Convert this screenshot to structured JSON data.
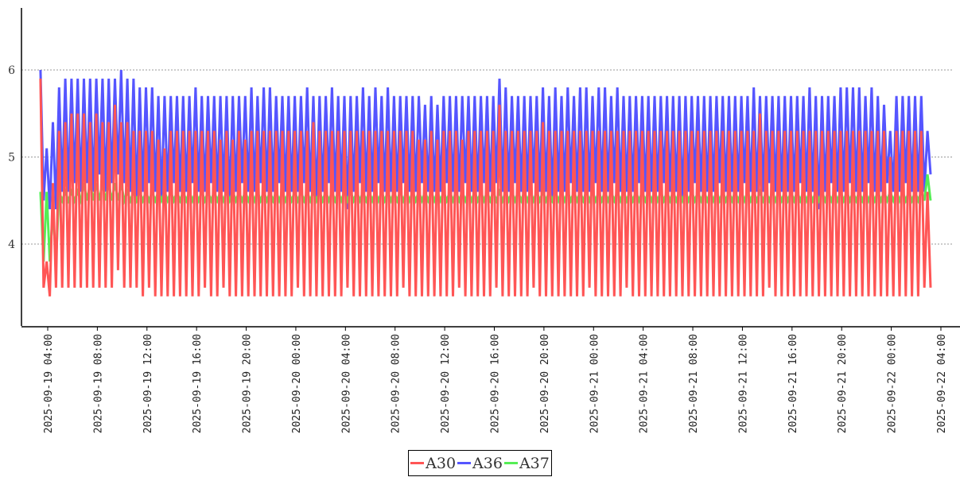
{
  "chart_data": {
    "type": "line",
    "title": "",
    "xlabel": "",
    "ylabel": "",
    "ylim": [
      3.07,
      6.71
    ],
    "xlim": [
      "2025-09-19 01:53",
      "2025-09-22 05:32"
    ],
    "grid": "horizontal-dotted",
    "legend_placement": "bottom-center",
    "y_ticks": [
      "4",
      "5",
      "6"
    ],
    "y_tick_values": [
      4,
      5,
      6
    ],
    "x_ticks": [
      "2025-09-19 04:00",
      "2025-09-19 08:00",
      "2025-09-19 12:00",
      "2025-09-19 16:00",
      "2025-09-19 20:00",
      "2025-09-20 00:00",
      "2025-09-20 04:00",
      "2025-09-20 08:00",
      "2025-09-20 12:00",
      "2025-09-20 16:00",
      "2025-09-20 20:00",
      "2025-09-21 00:00",
      "2025-09-21 04:00",
      "2025-09-21 08:00",
      "2025-09-21 12:00",
      "2025-09-21 16:00",
      "2025-09-21 20:00",
      "2025-09-22 00:00",
      "2025-09-22 04:00"
    ],
    "x_start": "2025-09-19 03:25",
    "cycle_minutes": 30,
    "series_format": "alternating peak (at start of each cycle) and trough (mid-cycle)",
    "series": [
      {
        "name": "A30",
        "color": "#ff5555",
        "peaks": [
          5.9,
          3.8,
          4.7,
          5.3,
          5.4,
          5.5,
          5.5,
          5.5,
          5.4,
          5.5,
          5.4,
          5.4,
          5.6,
          5.4,
          5.4,
          5.3,
          5.3,
          5.3,
          5.3,
          5.2,
          5.1,
          5.3,
          5.3,
          5.3,
          5.3,
          5.3,
          5.3,
          5.3,
          5.3,
          5.2,
          5.3,
          5.2,
          5.3,
          5.2,
          5.3,
          5.3,
          5.3,
          5.3,
          5.3,
          5.3,
          5.3,
          5.3,
          5.3,
          5.3,
          5.4,
          5.3,
          5.3,
          5.3,
          5.3,
          5.3,
          5.3,
          5.3,
          5.3,
          5.3,
          5.3,
          5.3,
          5.3,
          5.3,
          5.3,
          5.3,
          5.3,
          5.2,
          5.2,
          5.3,
          5.2,
          5.3,
          5.3,
          5.3,
          5.2,
          5.3,
          5.3,
          5.3,
          5.3,
          5.3,
          5.6,
          5.3,
          5.3,
          5.3,
          5.3,
          5.3,
          5.3,
          5.4,
          5.3,
          5.3,
          5.3,
          5.3,
          5.3,
          5.3,
          5.3,
          5.3,
          5.3,
          5.3,
          5.3,
          5.3,
          5.3,
          5.3,
          5.3,
          5.3,
          5.3,
          5.3,
          5.3,
          5.3,
          5.3,
          5.3,
          5.3,
          5.3,
          5.3,
          5.3,
          5.3,
          5.3,
          5.3,
          5.3,
          5.3,
          5.3,
          5.3,
          5.3,
          5.5,
          5.3,
          5.3,
          5.3,
          5.3,
          5.3,
          5.3,
          5.3,
          5.3,
          5.3,
          5.3,
          5.3,
          5.3,
          5.3,
          5.3,
          5.3,
          5.3,
          5.3,
          5.3,
          5.3,
          5.3,
          5.0,
          5.3,
          5.3,
          5.3,
          5.3,
          5.3,
          4.6
        ],
        "troughs": [
          3.5,
          3.4,
          3.5,
          3.5,
          3.5,
          3.5,
          3.5,
          3.5,
          3.5,
          3.5,
          3.5,
          3.5,
          3.7,
          3.5,
          3.5,
          3.5,
          3.4,
          3.5,
          3.4,
          3.4,
          3.4,
          3.4,
          3.4,
          3.4,
          3.4,
          3.4,
          3.5,
          3.4,
          3.4,
          3.5,
          3.4,
          3.4,
          3.4,
          3.4,
          3.4,
          3.4,
          3.4,
          3.4,
          3.4,
          3.4,
          3.4,
          3.5,
          3.4,
          3.4,
          3.4,
          3.4,
          3.4,
          3.4,
          3.4,
          3.5,
          3.4,
          3.4,
          3.4,
          3.4,
          3.4,
          3.4,
          3.4,
          3.4,
          3.5,
          3.4,
          3.4,
          3.4,
          3.4,
          3.4,
          3.4,
          3.4,
          3.4,
          3.5,
          3.4,
          3.4,
          3.4,
          3.4,
          3.4,
          3.5,
          3.4,
          3.4,
          3.4,
          3.4,
          3.4,
          3.5,
          3.4,
          3.4,
          3.4,
          3.4,
          3.4,
          3.4,
          3.4,
          3.4,
          3.5,
          3.4,
          3.4,
          3.4,
          3.4,
          3.4,
          3.5,
          3.4,
          3.4,
          3.4,
          3.4,
          3.4,
          3.4,
          3.4,
          3.4,
          3.4,
          3.4,
          3.4,
          3.4,
          3.4,
          3.4,
          3.4,
          3.4,
          3.4,
          3.4,
          3.4,
          3.4,
          3.4,
          3.4,
          3.5,
          3.4,
          3.4,
          3.4,
          3.4,
          3.4,
          3.4,
          3.4,
          3.4,
          3.4,
          3.4,
          3.4,
          3.4,
          3.4,
          3.4,
          3.4,
          3.4,
          3.4,
          3.4,
          3.4,
          3.4,
          3.4,
          3.4,
          3.4,
          3.4,
          3.5,
          3.5
        ]
      },
      {
        "name": "A36",
        "color": "#5555ff",
        "peaks": [
          6.0,
          5.1,
          5.4,
          5.8,
          5.9,
          5.9,
          5.9,
          5.9,
          5.9,
          5.9,
          5.9,
          5.9,
          5.9,
          6.0,
          5.9,
          5.9,
          5.8,
          5.8,
          5.8,
          5.7,
          5.7,
          5.7,
          5.7,
          5.7,
          5.7,
          5.8,
          5.7,
          5.7,
          5.7,
          5.7,
          5.7,
          5.7,
          5.7,
          5.7,
          5.8,
          5.7,
          5.8,
          5.8,
          5.7,
          5.7,
          5.7,
          5.7,
          5.7,
          5.8,
          5.7,
          5.7,
          5.7,
          5.8,
          5.7,
          5.7,
          5.7,
          5.7,
          5.8,
          5.7,
          5.8,
          5.7,
          5.8,
          5.7,
          5.7,
          5.7,
          5.7,
          5.7,
          5.6,
          5.7,
          5.6,
          5.7,
          5.7,
          5.7,
          5.7,
          5.7,
          5.7,
          5.7,
          5.7,
          5.7,
          5.9,
          5.8,
          5.7,
          5.7,
          5.7,
          5.7,
          5.7,
          5.8,
          5.7,
          5.8,
          5.7,
          5.8,
          5.7,
          5.8,
          5.8,
          5.7,
          5.8,
          5.8,
          5.7,
          5.8,
          5.7,
          5.7,
          5.7,
          5.7,
          5.7,
          5.7,
          5.7,
          5.7,
          5.7,
          5.7,
          5.7,
          5.7,
          5.7,
          5.7,
          5.7,
          5.7,
          5.7,
          5.7,
          5.7,
          5.7,
          5.7,
          5.8,
          5.7,
          5.7,
          5.7,
          5.7,
          5.7,
          5.7,
          5.7,
          5.7,
          5.8,
          5.7,
          5.7,
          5.7,
          5.7,
          5.8,
          5.8,
          5.8,
          5.8,
          5.7,
          5.8,
          5.7,
          5.6,
          5.3,
          5.7,
          5.7,
          5.7,
          5.7,
          5.7,
          5.3
        ],
        "troughs": [
          4.5,
          4.4,
          4.4,
          4.6,
          4.6,
          4.7,
          4.6,
          4.7,
          4.6,
          4.8,
          4.6,
          4.7,
          4.8,
          4.7,
          4.6,
          4.5,
          4.6,
          4.7,
          4.6,
          4.5,
          4.6,
          4.7,
          4.6,
          4.6,
          4.7,
          4.6,
          4.6,
          4.7,
          4.6,
          4.6,
          4.5,
          4.6,
          4.7,
          4.6,
          4.6,
          4.7,
          4.6,
          4.6,
          4.7,
          4.6,
          4.6,
          4.6,
          4.7,
          4.6,
          4.5,
          4.6,
          4.7,
          4.6,
          4.6,
          4.4,
          4.6,
          4.7,
          4.6,
          4.6,
          4.7,
          4.6,
          4.6,
          4.6,
          4.7,
          4.6,
          4.6,
          4.7,
          4.6,
          4.6,
          4.6,
          4.7,
          4.6,
          4.6,
          4.7,
          4.6,
          4.6,
          4.7,
          4.6,
          4.7,
          4.6,
          4.6,
          4.7,
          4.6,
          4.6,
          4.7,
          4.6,
          4.6,
          4.5,
          4.6,
          4.6,
          4.7,
          4.6,
          4.6,
          4.6,
          4.7,
          4.6,
          4.6,
          4.7,
          4.6,
          4.6,
          4.6,
          4.7,
          4.6,
          4.6,
          4.6,
          4.7,
          4.6,
          4.6,
          4.5,
          4.6,
          4.7,
          4.6,
          4.6,
          4.6,
          4.7,
          4.6,
          4.6,
          4.6,
          4.7,
          4.6,
          4.6,
          4.6,
          4.7,
          4.6,
          4.6,
          4.6,
          4.6,
          4.7,
          4.6,
          4.6,
          4.4,
          4.6,
          4.7,
          4.6,
          4.6,
          4.7,
          4.6,
          4.6,
          4.7,
          4.6,
          4.6,
          4.7,
          4.6,
          4.6,
          4.7,
          4.6,
          4.6,
          4.6,
          4.8
        ]
      },
      {
        "name": "A37",
        "color": "#55ee55",
        "peaks": [
          4.6,
          4.6,
          4.4,
          4.6,
          4.6,
          4.6,
          4.6,
          4.7,
          4.7,
          4.7,
          4.7,
          4.7,
          4.7,
          4.7,
          4.6,
          4.6,
          4.6,
          4.6,
          4.6,
          4.6,
          4.6,
          4.6,
          4.6,
          4.6,
          4.6,
          4.6,
          4.6,
          4.6,
          4.6,
          4.6,
          4.6,
          4.6,
          4.6,
          4.6,
          4.6,
          4.6,
          4.6,
          4.6,
          4.6,
          4.6,
          4.6,
          4.6,
          4.6,
          4.6,
          4.6,
          4.6,
          4.6,
          4.6,
          4.6,
          4.6,
          4.6,
          4.6,
          4.6,
          4.6,
          4.6,
          4.6,
          4.6,
          4.6,
          4.6,
          4.6,
          4.6,
          4.6,
          4.6,
          4.6,
          4.6,
          4.6,
          4.6,
          4.6,
          4.6,
          4.6,
          4.6,
          4.6,
          4.6,
          4.6,
          4.6,
          4.6,
          4.6,
          4.6,
          4.6,
          4.6,
          4.6,
          4.6,
          4.6,
          4.6,
          4.6,
          4.6,
          4.6,
          4.6,
          4.6,
          4.6,
          4.6,
          4.6,
          4.6,
          4.6,
          4.6,
          4.6,
          4.6,
          4.6,
          4.6,
          4.6,
          4.6,
          4.6,
          4.6,
          4.6,
          4.6,
          4.6,
          4.6,
          4.6,
          4.6,
          4.6,
          4.6,
          4.6,
          4.6,
          4.6,
          4.6,
          4.6,
          4.6,
          4.6,
          4.6,
          4.6,
          4.6,
          4.6,
          4.6,
          4.6,
          4.6,
          4.6,
          4.6,
          4.6,
          4.6,
          4.6,
          4.6,
          4.6,
          4.6,
          4.6,
          4.6,
          4.6,
          4.6,
          4.6,
          4.6,
          4.6,
          4.6,
          4.6,
          4.6,
          4.8
        ],
        "troughs": [
          3.8,
          3.8,
          3.8,
          4.5,
          4.5,
          4.5,
          4.5,
          4.5,
          4.5,
          4.5,
          4.5,
          4.5,
          4.5,
          4.5,
          4.5,
          4.5,
          4.5,
          4.5,
          4.5,
          4.5,
          4.5,
          4.5,
          4.5,
          4.5,
          4.5,
          4.5,
          4.5,
          4.5,
          4.5,
          4.5,
          4.5,
          4.5,
          4.5,
          4.5,
          4.5,
          4.5,
          4.5,
          4.5,
          4.5,
          4.5,
          4.5,
          4.5,
          4.5,
          4.5,
          4.5,
          4.5,
          4.5,
          4.5,
          4.5,
          4.5,
          4.5,
          4.5,
          4.5,
          4.5,
          4.5,
          4.5,
          4.5,
          4.5,
          4.5,
          4.5,
          4.5,
          4.5,
          4.5,
          4.5,
          4.5,
          4.5,
          4.5,
          4.5,
          4.5,
          4.5,
          4.5,
          4.5,
          4.5,
          4.5,
          4.5,
          4.5,
          4.5,
          4.5,
          4.5,
          4.5,
          4.5,
          4.5,
          4.5,
          4.5,
          4.5,
          4.5,
          4.5,
          4.5,
          4.5,
          4.5,
          4.5,
          4.5,
          4.5,
          4.5,
          4.5,
          4.5,
          4.5,
          4.5,
          4.5,
          4.5,
          4.5,
          4.5,
          4.5,
          4.5,
          4.5,
          4.5,
          4.5,
          4.5,
          4.5,
          4.5,
          4.5,
          4.5,
          4.5,
          4.5,
          4.5,
          4.5,
          4.5,
          4.5,
          4.5,
          4.5,
          4.5,
          4.5,
          4.5,
          4.5,
          4.5,
          4.5,
          4.5,
          4.5,
          4.5,
          4.5,
          4.5,
          4.5,
          4.5,
          4.5,
          4.5,
          4.5,
          4.5,
          4.5,
          4.5,
          4.5,
          4.5,
          4.5,
          4.5,
          4.5
        ]
      }
    ],
    "legend": [
      "A30",
      "A36",
      "A37"
    ]
  }
}
